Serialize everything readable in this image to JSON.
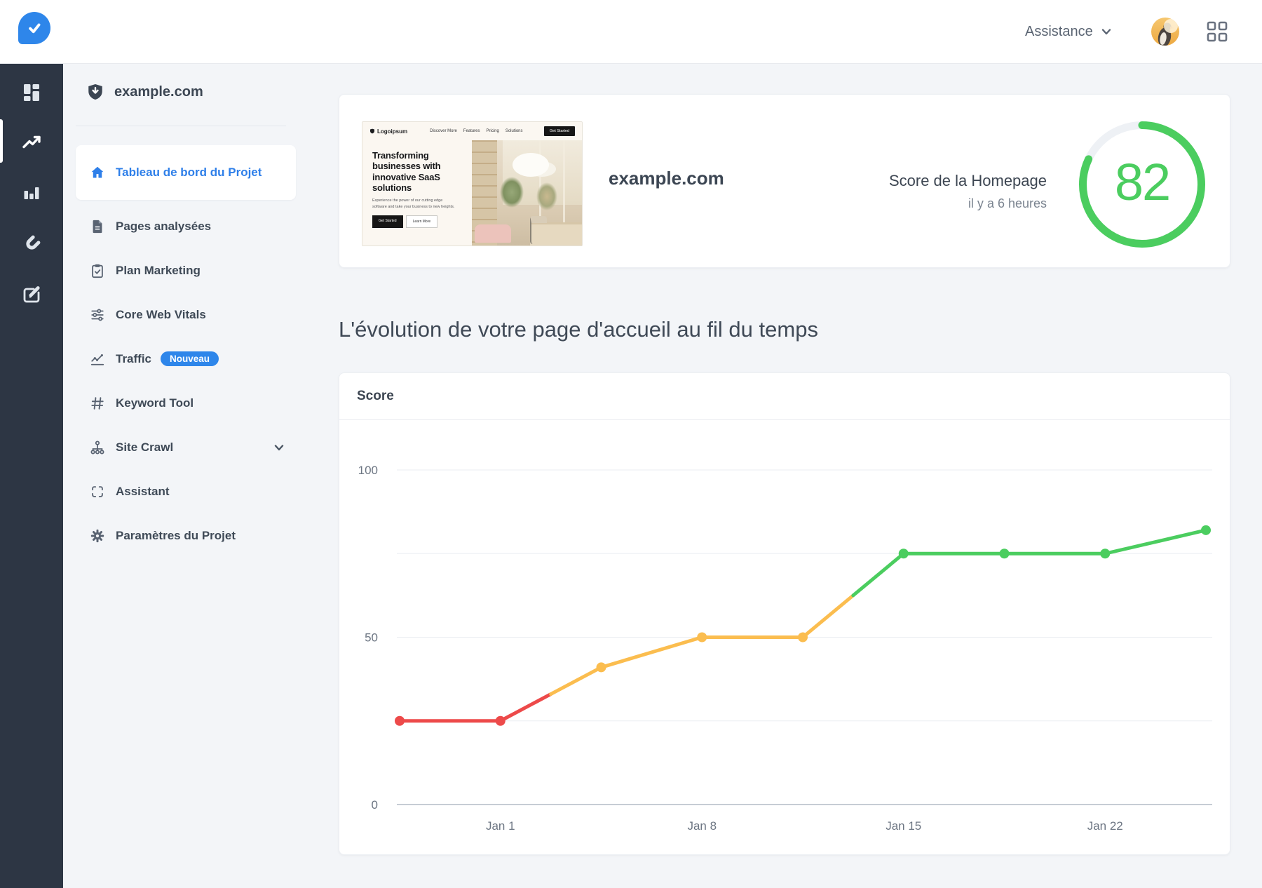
{
  "topbar": {
    "assistance_label": "Assistance"
  },
  "project_sidebar": {
    "domain": "example.com",
    "items": [
      {
        "label": "Tableau de bord du Projet",
        "icon": "home-icon",
        "active": true
      },
      {
        "label": "Pages analysées",
        "icon": "file-icon"
      },
      {
        "label": "Plan Marketing",
        "icon": "clipboard-icon"
      },
      {
        "label": "Core Web Vitals",
        "icon": "sliders-icon"
      },
      {
        "label": "Traffic",
        "icon": "chart-line-icon",
        "badge": "Nouveau"
      },
      {
        "label": "Keyword Tool",
        "icon": "hash-icon"
      },
      {
        "label": "Site Crawl",
        "icon": "sitemap-icon",
        "chevron": true
      },
      {
        "label": "Assistant",
        "icon": "scan-icon"
      },
      {
        "label": "Paramètres du Projet",
        "icon": "gear-icon"
      }
    ]
  },
  "summary_card": {
    "domain": "example.com",
    "score_label": "Score de la Homepage",
    "score_time": "il y a 6 heures",
    "score": 82,
    "thumbnail": {
      "logo": "Logoipsum",
      "nav": [
        "Discover More",
        "Features",
        "Pricing",
        "Solutions"
      ],
      "cta": "Get Started",
      "headline": "Transforming businesses with innovative SaaS solutions",
      "body": "Experience the power of our cutting edge software and take your business to new heights.",
      "button1": "Get Started",
      "button2": "Learn More"
    }
  },
  "section_title": "L'évolution de votre page d'accueil au fil du temps",
  "colors": {
    "red": "#ed4a4a",
    "yellow": "#fbbd4f",
    "green": "#4bcd5f",
    "accent_blue": "#2e86ea"
  },
  "chart_data": {
    "type": "line",
    "title": "Score",
    "series_name": "Score",
    "values": [
      25,
      25,
      41,
      50,
      50,
      75,
      75,
      75,
      82
    ],
    "point_colors": [
      "red",
      "red",
      "yellow",
      "yellow",
      "yellow",
      "green",
      "green",
      "green",
      "green"
    ],
    "x_tick_labels": [
      {
        "label": "Jan 1",
        "point_index": 1
      },
      {
        "label": "Jan 8",
        "point_index": 3
      },
      {
        "label": "Jan 15",
        "point_index": 5
      },
      {
        "label": "Jan 22",
        "point_index": 7
      }
    ],
    "ylim": [
      0,
      100
    ],
    "ylabel_ticks": [
      0,
      50,
      100
    ],
    "gridline_values": [
      0,
      25,
      50,
      75,
      100
    ],
    "grid": true,
    "legend": "none"
  }
}
